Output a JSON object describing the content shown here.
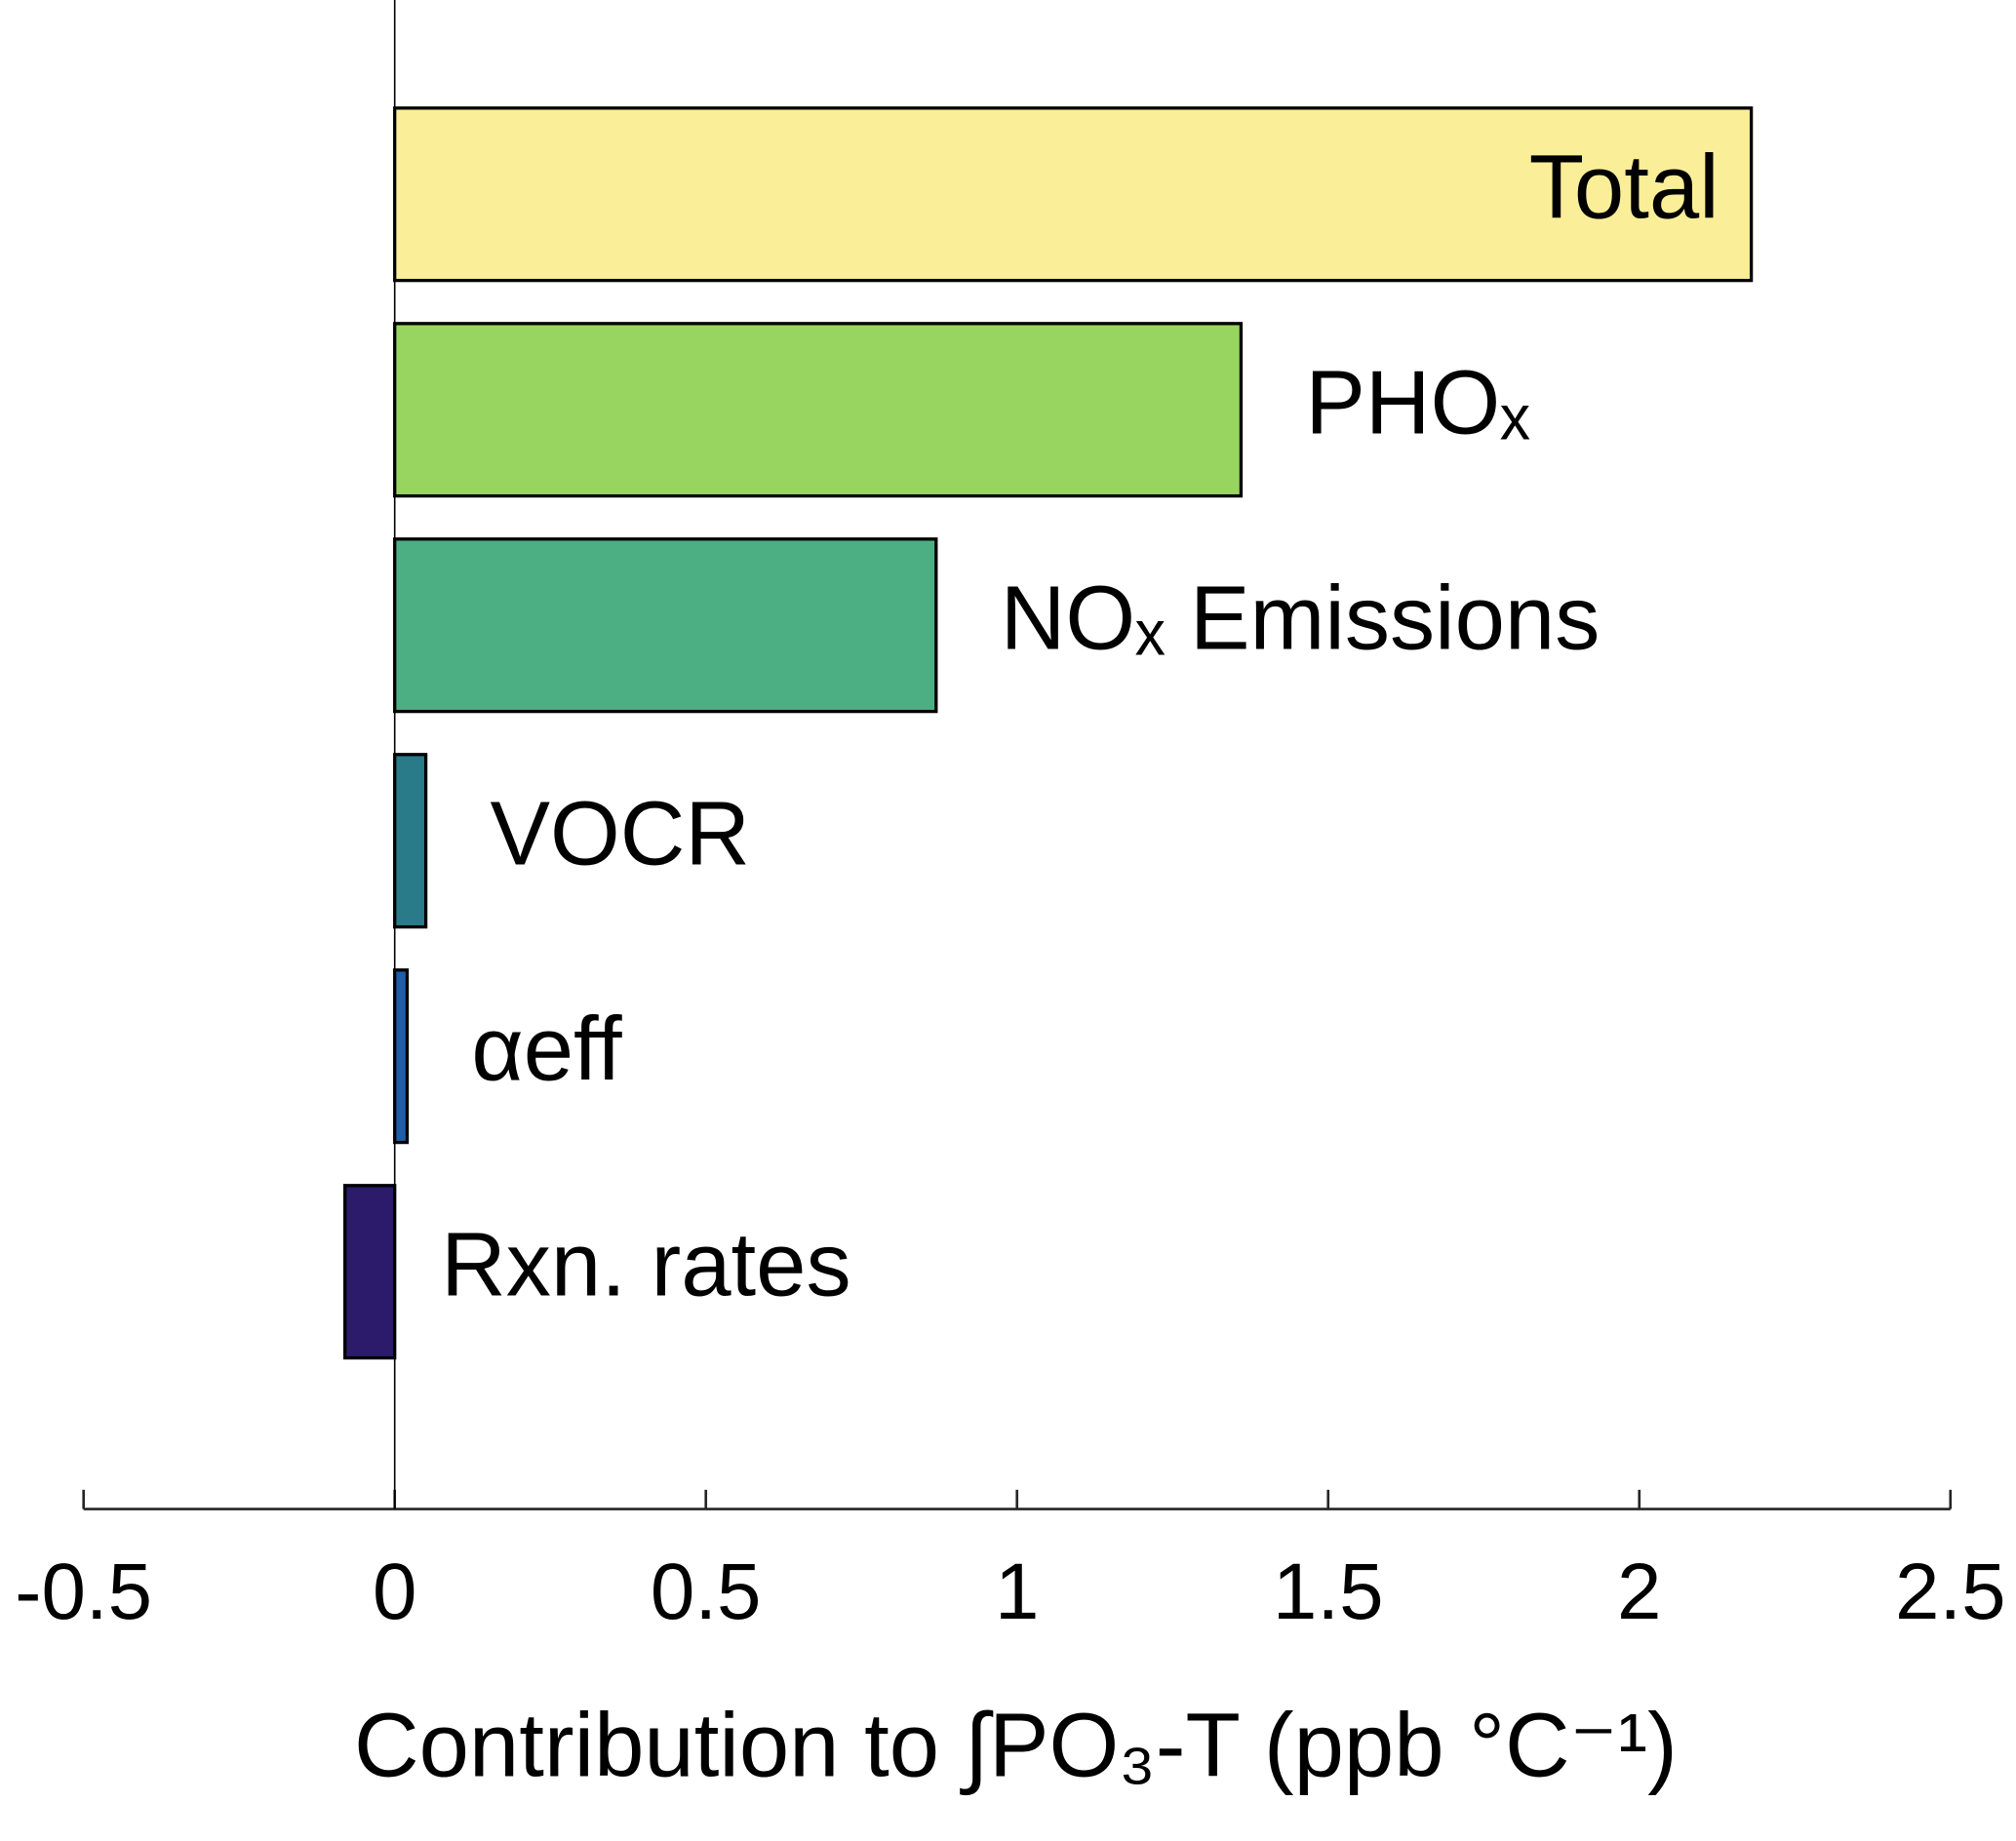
{
  "chart_data": {
    "type": "barh",
    "xlabel": "Contribution to ∫PO₃-T (ppb °C⁻¹)",
    "categories": [
      "Total",
      "PHOₓ",
      "NOₓ Emissions",
      "VOCR",
      "αeff",
      "Rxn. rates"
    ],
    "values": [
      2.18,
      1.36,
      0.87,
      0.05,
      0.02,
      -0.08
    ],
    "colors": [
      "#fbee99",
      "#97d560",
      "#4caf83",
      "#2a7b8a",
      "#1f5ea8",
      "#2c1a6b"
    ],
    "xlim": [
      -0.5,
      2.5
    ],
    "xticks": [
      -0.5,
      0,
      0.5,
      1,
      1.5,
      2,
      2.5
    ],
    "grid": false
  }
}
